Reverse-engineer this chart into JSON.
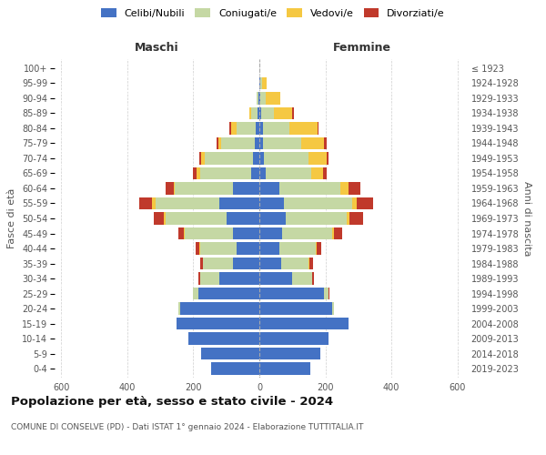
{
  "age_groups": [
    "0-4",
    "5-9",
    "10-14",
    "15-19",
    "20-24",
    "25-29",
    "30-34",
    "35-39",
    "40-44",
    "45-49",
    "50-54",
    "55-59",
    "60-64",
    "65-69",
    "70-74",
    "75-79",
    "80-84",
    "85-89",
    "90-94",
    "95-99",
    "100+"
  ],
  "birth_years": [
    "2019-2023",
    "2014-2018",
    "2009-2013",
    "2004-2008",
    "1999-2003",
    "1994-1998",
    "1989-1993",
    "1984-1988",
    "1979-1983",
    "1974-1978",
    "1969-1973",
    "1964-1968",
    "1959-1963",
    "1954-1958",
    "1949-1953",
    "1944-1948",
    "1939-1943",
    "1934-1938",
    "1929-1933",
    "1924-1928",
    "≤ 1923"
  ],
  "maschi": {
    "celibi": [
      145,
      175,
      215,
      250,
      240,
      185,
      120,
      80,
      70,
      80,
      100,
      120,
      80,
      25,
      20,
      15,
      10,
      5,
      2,
      0,
      0
    ],
    "coniugati": [
      0,
      0,
      0,
      0,
      5,
      15,
      60,
      90,
      110,
      145,
      185,
      195,
      175,
      155,
      145,
      100,
      60,
      20,
      5,
      0,
      0
    ],
    "vedovi": [
      0,
      0,
      0,
      0,
      0,
      0,
      0,
      2,
      2,
      3,
      5,
      10,
      5,
      10,
      10,
      10,
      15,
      5,
      2,
      0,
      0
    ],
    "divorziati": [
      0,
      0,
      0,
      0,
      0,
      2,
      5,
      8,
      12,
      18,
      30,
      40,
      25,
      10,
      8,
      5,
      5,
      0,
      0,
      0,
      0
    ]
  },
  "femmine": {
    "nubili": [
      155,
      185,
      210,
      270,
      220,
      195,
      100,
      65,
      60,
      70,
      80,
      75,
      60,
      18,
      15,
      12,
      10,
      5,
      3,
      2,
      0
    ],
    "coniugate": [
      0,
      0,
      0,
      0,
      5,
      15,
      60,
      85,
      110,
      150,
      185,
      205,
      185,
      140,
      135,
      115,
      80,
      40,
      15,
      5,
      0
    ],
    "vedove": [
      0,
      0,
      0,
      0,
      0,
      0,
      1,
      2,
      3,
      5,
      8,
      15,
      25,
      35,
      55,
      70,
      85,
      55,
      45,
      15,
      0
    ],
    "divorziate": [
      0,
      0,
      0,
      0,
      0,
      2,
      5,
      10,
      15,
      25,
      40,
      50,
      35,
      10,
      5,
      8,
      5,
      5,
      0,
      0,
      0
    ]
  },
  "colors": {
    "celibi": "#4472C4",
    "coniugati": "#C5D8A4",
    "vedovi": "#F5C842",
    "divorziati": "#C0392B"
  },
  "legend_labels": [
    "Celibi/Nubili",
    "Coniugati/e",
    "Vedovi/e",
    "Divorziati/e"
  ],
  "xlim": 620,
  "title": "Popolazione per età, sesso e stato civile - 2024",
  "subtitle": "COMUNE DI CONSELVE (PD) - Dati ISTAT 1° gennaio 2024 - Elaborazione TUTTITALIA.IT",
  "ylabel_left": "Fasce di età",
  "ylabel_right": "Anni di nascita",
  "xlabel_maschi": "Maschi",
  "xlabel_femmine": "Femmine",
  "bg_color": "#ffffff",
  "grid_color": "#c8c8c8",
  "bar_height": 0.82
}
